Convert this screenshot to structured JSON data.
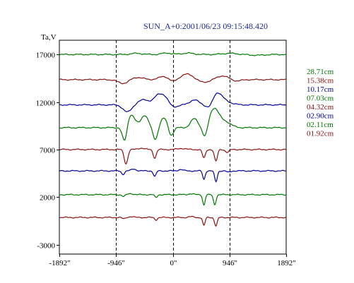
{
  "chart_data": {
    "type": "line",
    "title": "SUN_A+0:2001/06/23 09:15:48.420",
    "ylabel": "Ta,V",
    "xlabel": "",
    "xlim": [
      -1892,
      1892
    ],
    "ylim": [
      -4000,
      18500
    ],
    "x_ticks": [
      -1892,
      -946,
      0,
      946,
      1892
    ],
    "x_tick_labels": [
      "-1892\"",
      "-946\"",
      "0\"",
      "946\"",
      "1892\""
    ],
    "y_ticks": [
      17000,
      12000,
      7000,
      2000,
      -3000
    ],
    "y_tick_labels": [
      "17000",
      "12000",
      "7000",
      "2000",
      "-3000"
    ],
    "dashed_vlines": [
      -946,
      0,
      946
    ],
    "grid": false,
    "legend_position": "right",
    "series": [
      {
        "name": "28.71cm",
        "color": "#007700",
        "baseline": 17000,
        "features": [
          [
            -600,
            120,
            90
          ],
          [
            -100,
            150,
            80
          ],
          [
            250,
            140,
            100
          ],
          [
            950,
            120,
            120
          ],
          [
            1400,
            -80,
            120
          ]
        ]
      },
      {
        "name": "15.38cm",
        "color": "#8b1010",
        "baseline": 14350,
        "features": [
          [
            -820,
            -400,
            90
          ],
          [
            -600,
            250,
            100
          ],
          [
            -150,
            350,
            80
          ],
          [
            0,
            -250,
            60
          ],
          [
            250,
            600,
            110
          ],
          [
            500,
            -300,
            110
          ],
          [
            830,
            400,
            100
          ],
          [
            1050,
            -150,
            80
          ]
        ]
      },
      {
        "name": "10.17cm",
        "color": "#000099",
        "baseline": 11700,
        "features": [
          [
            -760,
            -750,
            70
          ],
          [
            -480,
            550,
            90
          ],
          [
            -240,
            1000,
            70
          ],
          [
            -130,
            650,
            60
          ],
          [
            30,
            -200,
            70
          ],
          [
            360,
            500,
            80
          ],
          [
            620,
            -700,
            60
          ],
          [
            730,
            1300,
            90
          ],
          [
            900,
            250,
            100
          ]
        ]
      },
      {
        "name": "07.03cm",
        "color": "#007700",
        "baseline": 9300,
        "features": [
          [
            -800,
            -1800,
            40
          ],
          [
            -700,
            1400,
            70
          ],
          [
            -470,
            1300,
            60
          ],
          [
            -290,
            -1300,
            40
          ],
          [
            -150,
            1000,
            60
          ],
          [
            -30,
            -900,
            40
          ],
          [
            360,
            950,
            60
          ],
          [
            540,
            -1200,
            40
          ],
          [
            690,
            2000,
            80
          ],
          [
            880,
            600,
            90
          ]
        ]
      },
      {
        "name": "04.32cm",
        "color": "#8b1010",
        "baseline": 7000,
        "features": [
          [
            -780,
            -1500,
            30
          ],
          [
            -300,
            -900,
            25
          ],
          [
            520,
            -900,
            25
          ],
          [
            720,
            -1250,
            25
          ],
          [
            910,
            -300,
            30
          ],
          [
            -530,
            150,
            50
          ],
          [
            150,
            120,
            60
          ]
        ]
      },
      {
        "name": "02.90cm",
        "color": "#000099",
        "baseline": 4750,
        "features": [
          [
            -830,
            -350,
            25
          ],
          [
            -300,
            -600,
            22
          ],
          [
            520,
            -900,
            20
          ],
          [
            720,
            -1150,
            22
          ],
          [
            -650,
            200,
            40
          ],
          [
            130,
            150,
            40
          ],
          [
            930,
            -150,
            30
          ]
        ]
      },
      {
        "name": "02.11cm",
        "color": "#007700",
        "baseline": 2250,
        "features": [
          [
            -820,
            -200,
            25
          ],
          [
            -280,
            -300,
            22
          ],
          [
            520,
            -1100,
            20
          ],
          [
            700,
            -1050,
            22
          ],
          [
            -700,
            120,
            40
          ],
          [
            300,
            100,
            40
          ]
        ]
      },
      {
        "name": "01.92cm",
        "color": "#8b1010",
        "baseline": -150,
        "features": [
          [
            -820,
            -150,
            25
          ],
          [
            -280,
            -250,
            22
          ],
          [
            520,
            -850,
            20
          ],
          [
            720,
            -900,
            22
          ],
          [
            -700,
            90,
            40
          ],
          [
            300,
            80,
            40
          ]
        ]
      }
    ]
  }
}
